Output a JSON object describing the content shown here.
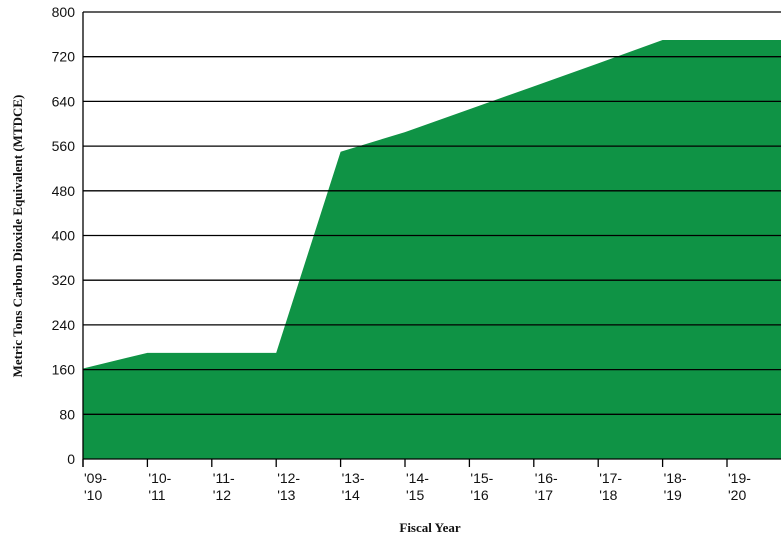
{
  "chart_data": {
    "type": "area",
    "x_label": "Fiscal Year",
    "y_label": "Metric Tons Carbon Dioxide Equivalent (MTDCE)",
    "categories": [
      "'09- '10",
      "'10- '11",
      "'11- '12",
      "'12- '13",
      "'13- '14",
      "'14- '15",
      "'15- '16",
      "'16- '17",
      "'17- '18",
      "'18- '19",
      "'19- '20"
    ],
    "values": [
      162,
      190,
      190,
      190,
      550,
      585,
      626,
      667,
      708,
      750,
      750
    ],
    "color": "#0f9345",
    "ylim": [
      0,
      800
    ],
    "yticks": [
      0,
      80,
      160,
      240,
      320,
      400,
      480,
      560,
      640,
      720,
      800
    ],
    "grid": true
  }
}
